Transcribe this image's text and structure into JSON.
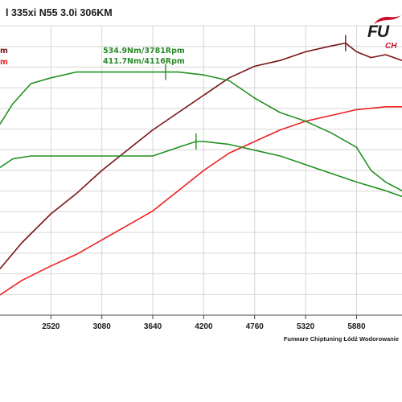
{
  "title": "l 335xi N55 3.0i 306KM",
  "left_labels": {
    "dark": "m",
    "red": "m"
  },
  "annotations": {
    "tuned_torque": "534.9Nm/3781Rpm",
    "stock_torque": "411.7Nm/4116Rpm"
  },
  "credit": "Funware Chiptuning Łódź Wodorowanie",
  "logo": {
    "text": "FU",
    "sub": "CH"
  },
  "colors": {
    "tuned_power": "#7a1416",
    "stock_power": "#ee2020",
    "torque": "#229122",
    "grid": "#d6d6d6"
  },
  "chart_data": {
    "type": "line",
    "xlim": [
      1960,
      6380
    ],
    "ylim": [
      0,
      1
    ],
    "xticks": [
      2520,
      3080,
      3640,
      4200,
      4760,
      5320,
      5880
    ],
    "grid": true,
    "series": [
      {
        "key": "tuned_power",
        "color": "#7a1416",
        "x": [
          1960,
          2200,
          2520,
          2800,
          3080,
          3360,
          3640,
          3920,
          4200,
          4480,
          4760,
          5040,
          5320,
          5600,
          5760,
          5880,
          6040,
          6200,
          6380
        ],
        "y": [
          0.16,
          0.25,
          0.35,
          0.42,
          0.5,
          0.57,
          0.64,
          0.7,
          0.76,
          0.82,
          0.86,
          0.88,
          0.91,
          0.93,
          0.94,
          0.91,
          0.89,
          0.9,
          0.88
        ]
      },
      {
        "key": "stock_power",
        "color": "#ee2020",
        "x": [
          1960,
          2200,
          2520,
          2800,
          3080,
          3360,
          3640,
          3920,
          4200,
          4480,
          4760,
          5040,
          5320,
          5600,
          5880,
          6200,
          6380
        ],
        "y": [
          0.07,
          0.12,
          0.17,
          0.21,
          0.26,
          0.31,
          0.36,
          0.43,
          0.5,
          0.56,
          0.6,
          0.64,
          0.67,
          0.69,
          0.71,
          0.72,
          0.72
        ]
      },
      {
        "key": "tuned_torque",
        "color": "#229122",
        "x": [
          1960,
          2100,
          2300,
          2520,
          2800,
          3080,
          3360,
          3640,
          3781,
          3920,
          4200,
          4480,
          4760,
          5040,
          5320,
          5600,
          5880,
          6040,
          6200,
          6380
        ],
        "y": [
          0.66,
          0.73,
          0.8,
          0.82,
          0.84,
          0.84,
          0.84,
          0.84,
          0.84,
          0.84,
          0.83,
          0.81,
          0.75,
          0.7,
          0.67,
          0.63,
          0.58,
          0.5,
          0.46,
          0.43
        ]
      },
      {
        "key": "stock_torque",
        "color": "#229122",
        "x": [
          1960,
          2100,
          2300,
          2520,
          2800,
          3080,
          3360,
          3640,
          3920,
          4116,
          4200,
          4480,
          4760,
          5040,
          5320,
          5600,
          5880,
          6200,
          6380
        ],
        "y": [
          0.51,
          0.54,
          0.55,
          0.55,
          0.55,
          0.55,
          0.55,
          0.55,
          0.58,
          0.6,
          0.6,
          0.59,
          0.57,
          0.55,
          0.52,
          0.49,
          0.46,
          0.43,
          0.41
        ]
      }
    ],
    "markers": [
      {
        "series": "tuned_torque",
        "x": 3781,
        "y": 0.84
      },
      {
        "series": "stock_torque",
        "x": 4116,
        "y": 0.6
      },
      {
        "series": "tuned_power",
        "x": 5760,
        "y": 0.94
      }
    ]
  }
}
